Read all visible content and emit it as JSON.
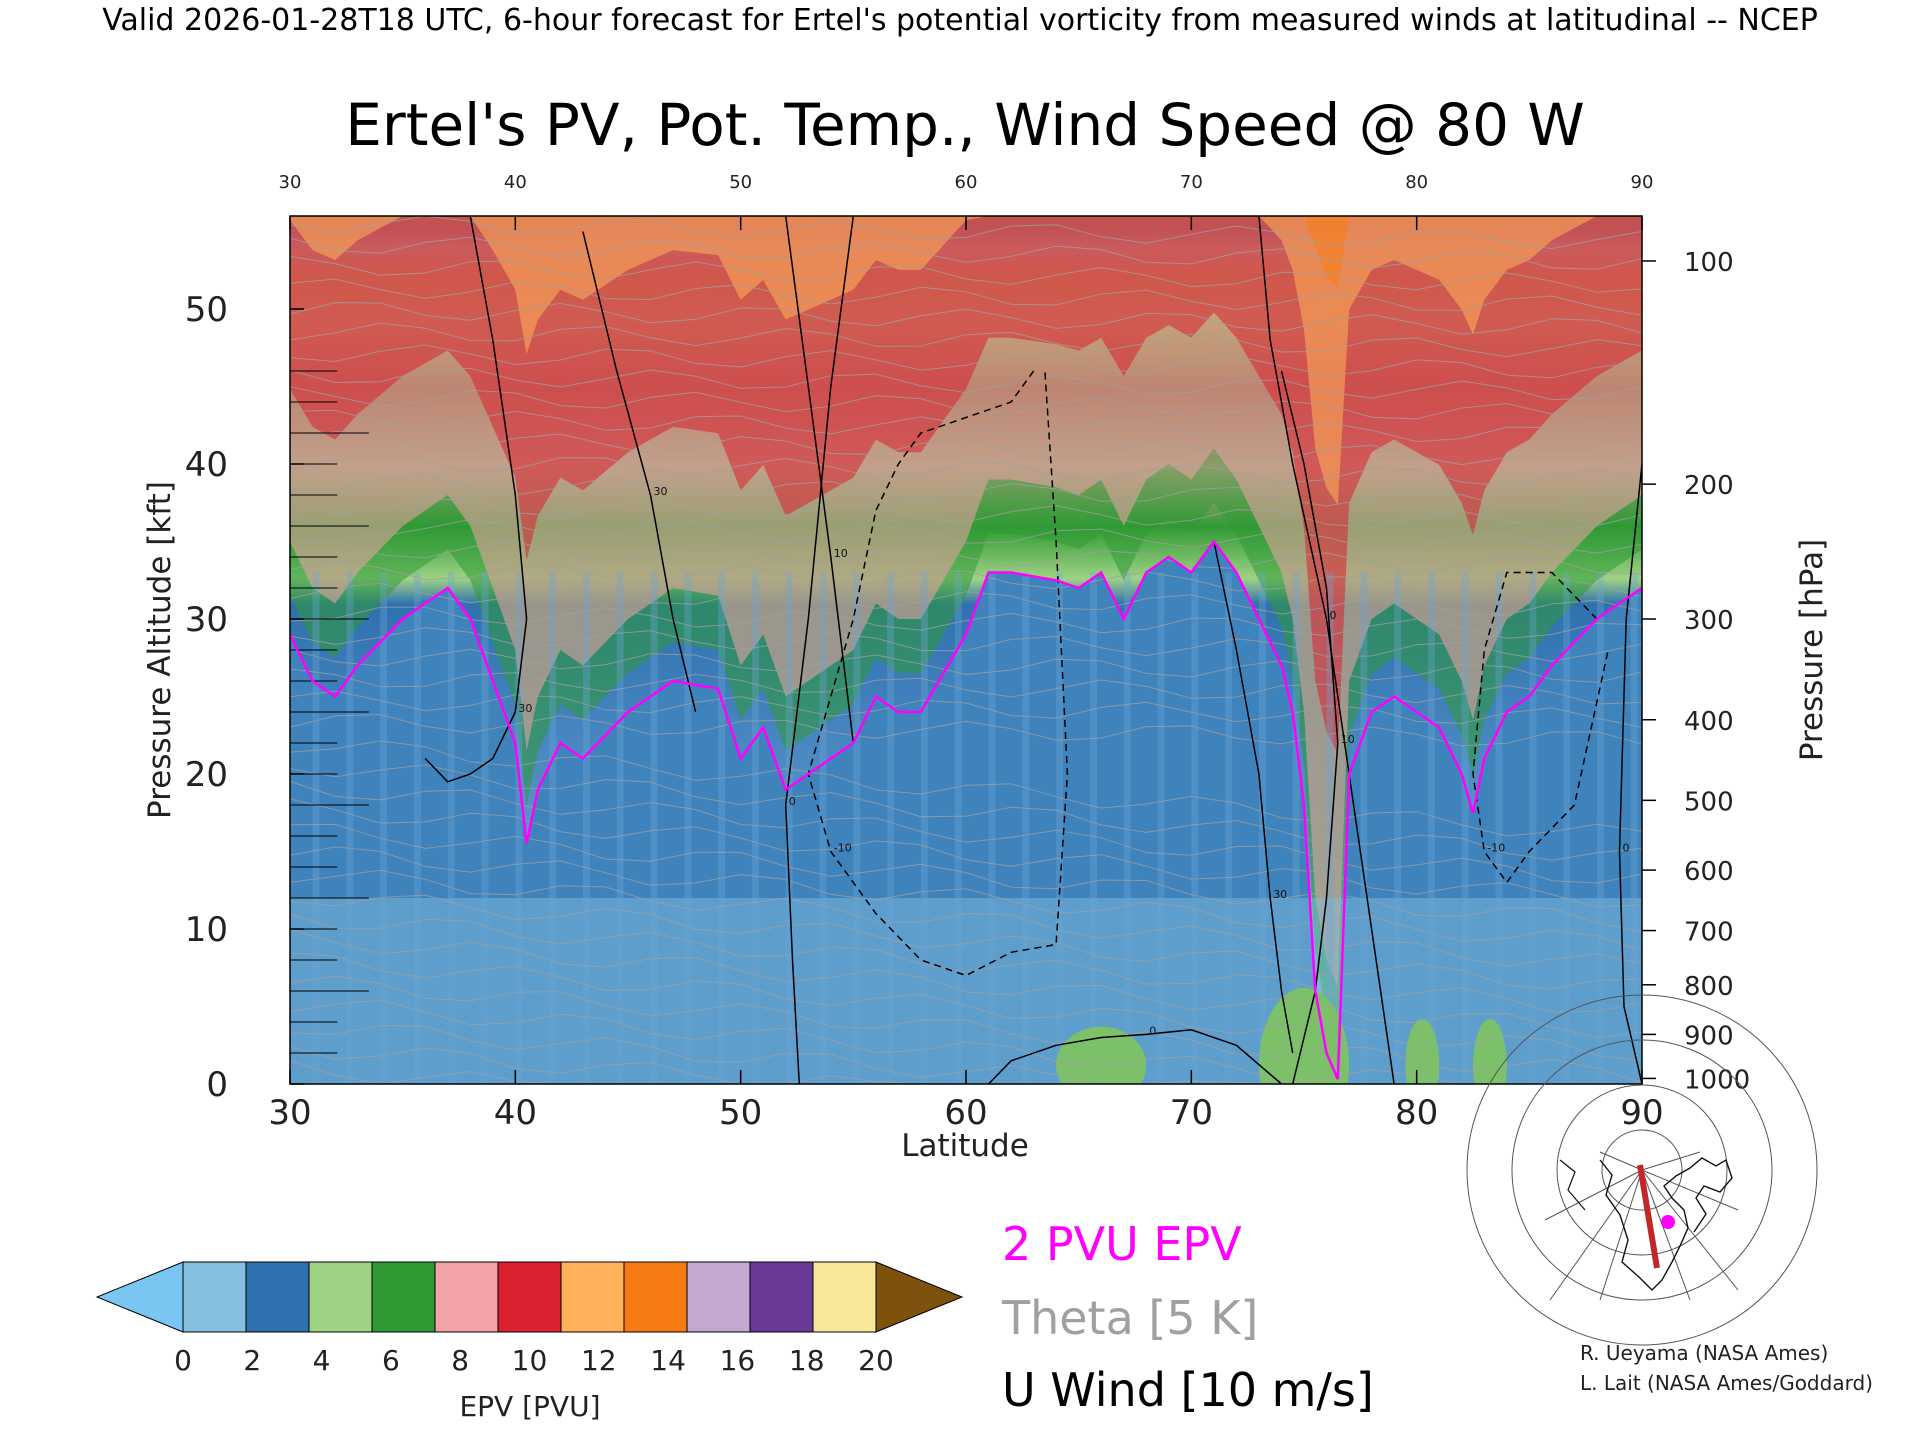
{
  "header": "Valid 2026-01-28T18 UTC, 6-hour forecast for Ertel's potential vorticity from measured winds at latitudinal -- NCEP",
  "chart_data": {
    "type": "heatmap",
    "title": "Ertel's PV, Pot. Temp., Wind Speed @ 80 W",
    "xlabel": "Latitude",
    "ylabel": "Pressure Altitude [kft]",
    "ylabel_right": "Pressure [hPa]",
    "xlim": [
      30,
      90
    ],
    "ylim": [
      0,
      56
    ],
    "x_ticks": [
      "30",
      "40",
      "50",
      "60",
      "70",
      "80",
      "90"
    ],
    "y_ticks": [
      "0",
      "10",
      "20",
      "30",
      "40",
      "50"
    ],
    "pressure_ticks": [
      {
        "label": "1000",
        "kft": 0.36
      },
      {
        "label": "900",
        "kft": 3.2
      },
      {
        "label": "800",
        "kft": 6.4
      },
      {
        "label": "700",
        "kft": 9.9
      },
      {
        "label": "600",
        "kft": 13.8
      },
      {
        "label": "500",
        "kft": 18.3
      },
      {
        "label": "400",
        "kft": 23.5
      },
      {
        "label": "300",
        "kft": 30.0
      },
      {
        "label": "200",
        "kft": 38.7
      },
      {
        "label": "100",
        "kft": 53.1
      }
    ],
    "tropopause_2pvu": {
      "lat": [
        30,
        31,
        32,
        33,
        35,
        37,
        38,
        39,
        40,
        40.5,
        41,
        42,
        43,
        45,
        47,
        49,
        50,
        51,
        52,
        53,
        55,
        56,
        57,
        58,
        60,
        61,
        62,
        64,
        65,
        66,
        67,
        68,
        69,
        70,
        71,
        72,
        73,
        74,
        74.5,
        75,
        75.5,
        76,
        76.5,
        77,
        78,
        79,
        80,
        81,
        82,
        82.5,
        83,
        84,
        85,
        86,
        88,
        90
      ],
      "kft": [
        29,
        26,
        25,
        27,
        30,
        32,
        30,
        26,
        22,
        15.5,
        19,
        22,
        21,
        24,
        26,
        25.5,
        21,
        23,
        19,
        20,
        22,
        25,
        24,
        24,
        29,
        33,
        33,
        32.5,
        32,
        33,
        30,
        33,
        34,
        33,
        35,
        33,
        30,
        27,
        24,
        18,
        6,
        2,
        0.3,
        20,
        24,
        25,
        24,
        23,
        20,
        17.5,
        21,
        24,
        25,
        27,
        30,
        32
      ]
    },
    "u_wind_contours": [
      {
        "label": "30",
        "lat": [
          38,
          39,
          40,
          40.5,
          40,
          39,
          38,
          37,
          36
        ],
        "kft": [
          56,
          48,
          38,
          30,
          24,
          21,
          20,
          19.5,
          21
        ]
      },
      {
        "label": "30",
        "lat": [
          43,
          44.5,
          46,
          47,
          48
        ],
        "kft": [
          55,
          46,
          38,
          30,
          24
        ]
      },
      {
        "label": "10",
        "lat": [
          52,
          53,
          54,
          55
        ],
        "kft": [
          56,
          45,
          34,
          22
        ]
      },
      {
        "label": "0",
        "lat": [
          55,
          54,
          53,
          52,
          52.3,
          52.6
        ],
        "kft": [
          56,
          45,
          30,
          18,
          8,
          0
        ]
      },
      {
        "label": "-10",
        "lat": [
          63,
          62,
          60,
          58,
          57,
          56,
          55,
          53,
          54,
          56,
          58,
          60,
          62,
          64,
          64.5,
          64,
          63.5
        ],
        "kft": [
          46,
          44,
          43,
          42,
          40,
          37,
          30,
          20,
          15,
          11,
          8,
          7,
          8.5,
          9,
          20,
          35,
          46
        ]
      },
      {
        "label": "0",
        "lat": [
          73,
          73.5,
          74.5,
          76,
          77,
          78,
          79
        ],
        "kft": [
          56,
          48,
          40,
          30,
          20,
          10,
          0
        ]
      },
      {
        "label": "10",
        "lat": [
          74,
          75,
          76,
          76.5,
          76,
          75.5,
          74.5
        ],
        "kft": [
          46,
          40,
          32,
          22,
          12,
          6,
          0
        ]
      },
      {
        "label": "30",
        "lat": [
          71,
          72,
          73,
          73.5,
          74,
          74.5
        ],
        "kft": [
          35,
          28,
          20,
          12,
          6,
          2
        ]
      },
      {
        "label": "0",
        "lat": [
          61,
          62,
          64,
          66,
          68,
          70,
          72,
          74
        ],
        "kft": [
          0,
          1.5,
          2.5,
          3,
          3.2,
          3.5,
          2.5,
          0
        ]
      },
      {
        "label": "-10",
        "lat": [
          88,
          86,
          84,
          83,
          82.5,
          83,
          84,
          85,
          87,
          88.5
        ],
        "kft": [
          30,
          33,
          33,
          28,
          20,
          15,
          13,
          15,
          18,
          28
        ]
      },
      {
        "label": "0",
        "lat": [
          90,
          89.3,
          89,
          89.2,
          90
        ],
        "kft": [
          40,
          30,
          15,
          5,
          0
        ]
      }
    ],
    "theta_levels_K": [
      "270",
      "280",
      "290",
      "300",
      "310",
      "320",
      "330",
      "340",
      "350",
      "360",
      "370",
      "380",
      "390",
      "400"
    ],
    "colorbar": {
      "label": "EPV [PVU]",
      "ticks": [
        "0",
        "2",
        "4",
        "6",
        "8",
        "10",
        "12",
        "14",
        "16",
        "18",
        "20"
      ],
      "colors": [
        "#84bfe0",
        "#2e71ae",
        "#9ed285",
        "#2f9a34",
        "#f3a3a8",
        "#db2030",
        "#ffb25a",
        "#f77b13",
        "#c4a8cf",
        "#6a3a96",
        "#f7e898"
      ],
      "under_color": "#79c6f2",
      "over_color": "#7e520d"
    }
  },
  "legend": {
    "pvu_label": "2 PVU EPV",
    "pvu_color": "#ff00ff",
    "theta_label": "Theta [5 K]",
    "theta_color": "#a0a0a0",
    "wind_label": "U Wind [10 m/s]",
    "wind_color": "#000000"
  },
  "inset_map": {
    "marker_color": "#ff00ff",
    "track_color": "#c0282a"
  },
  "credits": {
    "line1": "R. Ueyama (NASA Ames)",
    "line2": "L. Lait (NASA Ames/Goddard)"
  }
}
